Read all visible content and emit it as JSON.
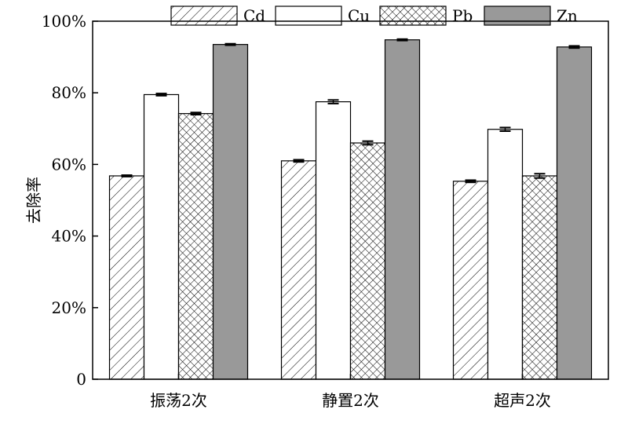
{
  "chart_data": {
    "type": "bar",
    "title": "",
    "xlabel": "",
    "ylabel": "去除率",
    "ylim": [
      0,
      100
    ],
    "yticks": [
      "0",
      "20%",
      "40%",
      "60%",
      "80%",
      "100%"
    ],
    "categories": [
      "振荡2次",
      "静置2次",
      "超声2次"
    ],
    "series": [
      {
        "name": "Cd",
        "values": [
          56.8,
          61.0,
          55.3
        ],
        "errors": [
          0.2,
          0.3,
          0.3
        ],
        "fill": "hatch-diagonal"
      },
      {
        "name": "Cu",
        "values": [
          79.5,
          77.5,
          69.8
        ],
        "errors": [
          0.3,
          0.5,
          0.5
        ],
        "fill": "#ffffff"
      },
      {
        "name": "Pb",
        "values": [
          74.2,
          66.0,
          56.8
        ],
        "errors": [
          0.3,
          0.5,
          0.6
        ],
        "fill": "hatch-cross"
      },
      {
        "name": "Zn",
        "values": [
          93.5,
          94.8,
          92.8
        ],
        "errors": [
          0.2,
          0.2,
          0.3
        ],
        "fill": "#999999"
      }
    ],
    "legend_position": "top",
    "grid": false
  }
}
